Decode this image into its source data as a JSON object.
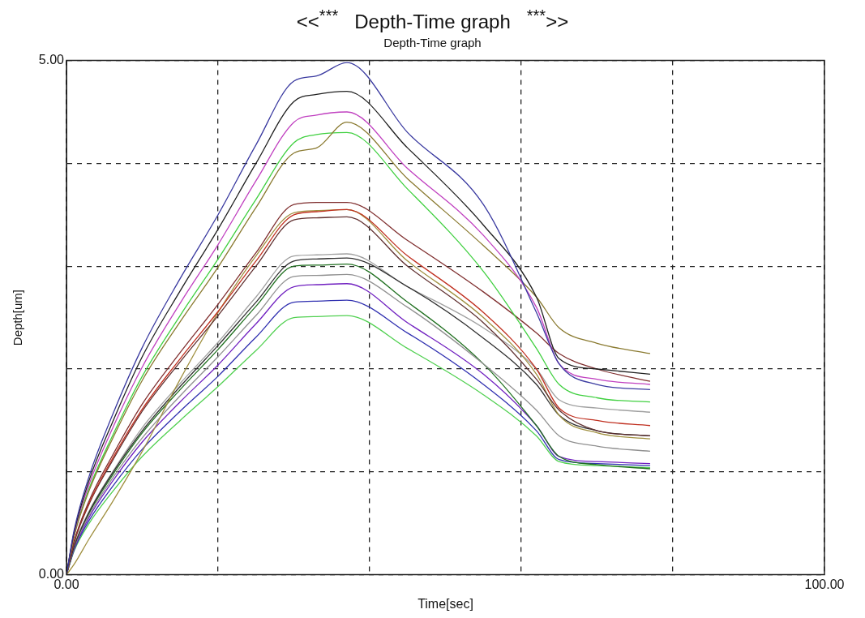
{
  "chart_data": {
    "type": "line",
    "title": "<<$^{***}$   Depth-Time graph   $^{***}$>>",
    "subtitle": "Depth-Time graph",
    "xlabel": "Time[sec]",
    "ylabel": "Depth[um]",
    "x": [
      0,
      1,
      3,
      6,
      10,
      15,
      20,
      25,
      30,
      33,
      37,
      45,
      55,
      62,
      65,
      70,
      77
    ],
    "series": [
      {
        "color": "#3a3aa0",
        "values": [
          0,
          0.43,
          0.96,
          1.54,
          2.21,
          2.88,
          3.5,
          4.18,
          4.8,
          4.85,
          4.98,
          4.3,
          3.6,
          2.55,
          2.05,
          1.85,
          1.8
        ]
      },
      {
        "color": "#202020",
        "values": [
          0,
          0.41,
          0.92,
          1.47,
          2.12,
          2.76,
          3.36,
          4.0,
          4.6,
          4.67,
          4.7,
          4.15,
          3.4,
          2.7,
          2.1,
          2.0,
          1.95
        ]
      },
      {
        "color": "#c040c0",
        "values": [
          0,
          0.4,
          0.88,
          1.41,
          2.02,
          2.64,
          3.21,
          3.83,
          4.4,
          4.47,
          4.5,
          3.95,
          3.3,
          2.6,
          2.05,
          1.9,
          1.85
        ]
      },
      {
        "color": "#8a7a30",
        "values": [
          0,
          0.37,
          0.82,
          1.31,
          1.89,
          2.46,
          2.99,
          3.57,
          4.1,
          4.15,
          4.4,
          3.85,
          3.2,
          2.7,
          2.4,
          2.25,
          2.15
        ]
      },
      {
        "color": "#40d040",
        "values": [
          0,
          0.38,
          0.84,
          1.34,
          1.93,
          2.52,
          3.07,
          3.65,
          4.2,
          4.28,
          4.3,
          3.75,
          2.95,
          2.2,
          1.85,
          1.72,
          1.68
        ]
      },
      {
        "color": "#803030",
        "values": [
          0,
          0.32,
          0.72,
          1.15,
          1.66,
          2.16,
          2.63,
          3.13,
          3.6,
          3.62,
          3.62,
          3.25,
          2.75,
          2.35,
          2.15,
          2.0,
          1.88
        ]
      },
      {
        "color": "#c03020",
        "values": [
          0,
          0.32,
          0.7,
          1.12,
          1.61,
          2.1,
          2.56,
          3.05,
          3.5,
          3.53,
          3.55,
          3.1,
          2.55,
          2.0,
          1.62,
          1.5,
          1.45
        ]
      },
      {
        "color": "#603030",
        "values": [
          0,
          0.31,
          0.69,
          1.1,
          1.59,
          2.07,
          2.52,
          3.0,
          3.45,
          3.47,
          3.48,
          3.0,
          2.45,
          1.9,
          1.6,
          1.4,
          1.35
        ]
      },
      {
        "color": "#a09040",
        "values": [
          0,
          0.1,
          0.35,
          0.7,
          1.2,
          1.9,
          2.55,
          3.1,
          3.52,
          3.54,
          3.55,
          3.05,
          2.5,
          1.95,
          1.55,
          1.38,
          1.32
        ]
      },
      {
        "color": "#303030",
        "values": [
          0,
          0.27,
          0.61,
          0.98,
          1.4,
          1.83,
          2.23,
          2.65,
          3.05,
          3.07,
          3.08,
          2.8,
          2.3,
          1.85,
          1.55,
          1.4,
          1.35
        ]
      },
      {
        "color": "#a0a0a0",
        "values": [
          0,
          0.28,
          0.62,
          0.99,
          1.43,
          1.86,
          2.26,
          2.7,
          3.1,
          3.11,
          3.12,
          2.8,
          2.4,
          2.0,
          1.7,
          1.62,
          1.58
        ]
      },
      {
        "color": "#909090",
        "values": [
          0,
          0.26,
          0.58,
          0.93,
          1.33,
          1.74,
          2.12,
          2.52,
          2.9,
          2.91,
          2.92,
          2.6,
          2.05,
          1.6,
          1.35,
          1.25,
          1.2
        ]
      },
      {
        "color": "#207020",
        "values": [
          0,
          0.27,
          0.6,
          0.96,
          1.38,
          1.8,
          2.19,
          2.61,
          3.0,
          3.01,
          3.02,
          2.65,
          2.05,
          1.45,
          1.15,
          1.07,
          1.03
        ]
      },
      {
        "color": "#7020c0",
        "values": [
          0,
          0.25,
          0.56,
          0.9,
          1.29,
          1.68,
          2.04,
          2.44,
          2.8,
          2.82,
          2.83,
          2.45,
          1.95,
          1.45,
          1.15,
          1.1,
          1.08
        ]
      },
      {
        "color": "#3030b0",
        "values": [
          0,
          0.24,
          0.53,
          0.85,
          1.22,
          1.59,
          1.93,
          2.31,
          2.65,
          2.66,
          2.67,
          2.35,
          1.85,
          1.4,
          1.12,
          1.08,
          1.06
        ]
      },
      {
        "color": "#50d050",
        "values": [
          0,
          0.23,
          0.5,
          0.8,
          1.15,
          1.5,
          1.83,
          2.18,
          2.5,
          2.51,
          2.52,
          2.2,
          1.75,
          1.35,
          1.1,
          1.06,
          1.04
        ]
      }
    ],
    "xlim": [
      0,
      100
    ],
    "ylim": [
      0,
      5
    ],
    "xticks": [
      {
        "value": 0,
        "label": "0.00"
      },
      {
        "value": 20,
        "label": null
      },
      {
        "value": 40,
        "label": null
      },
      {
        "value": 60,
        "label": null
      },
      {
        "value": 80,
        "label": null
      },
      {
        "value": 100,
        "label": "100.00"
      }
    ],
    "yticks": [
      {
        "value": 0,
        "label": "0.00"
      },
      {
        "value": 1,
        "label": null
      },
      {
        "value": 2,
        "label": null
      },
      {
        "value": 3,
        "label": null
      },
      {
        "value": 4,
        "label": null
      },
      {
        "value": 5,
        "label": "5.00"
      }
    ],
    "grid": true,
    "legend": false,
    "marker": "none",
    "line_style": "solid"
  }
}
